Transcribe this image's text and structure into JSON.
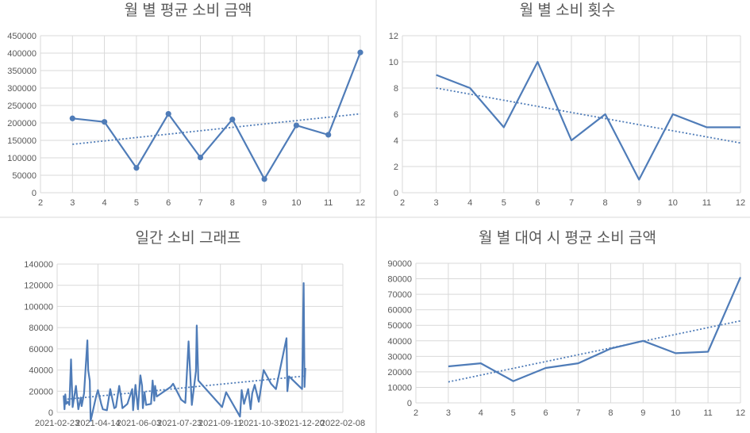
{
  "chart_data": [
    {
      "type": "line",
      "title": "월 별 평균 소비 금액",
      "x": [
        3,
        4,
        5,
        6,
        7,
        8,
        9,
        10,
        11,
        12
      ],
      "series": [
        {
          "values": [
            213000,
            203000,
            71000,
            226000,
            101000,
            210000,
            39000,
            193000,
            166000,
            402000
          ],
          "markers": true,
          "color": "#4f7cb8"
        }
      ],
      "trendline": {
        "type": "linear",
        "style": "dotted"
      },
      "xlim": [
        2,
        12
      ],
      "ylim": [
        0,
        450000
      ],
      "xticks": [
        "2",
        "3",
        "4",
        "5",
        "6",
        "7",
        "8",
        "9",
        "10",
        "11",
        "12"
      ],
      "yticks": [
        "0",
        "50000",
        "100000",
        "150000",
        "200000",
        "250000",
        "300000",
        "350000",
        "400000",
        "450000"
      ],
      "grid": true,
      "legend": "none"
    },
    {
      "type": "line",
      "title": "월 별 소비 횟수",
      "x": [
        3,
        4,
        5,
        6,
        7,
        8,
        9,
        10,
        11,
        12
      ],
      "series": [
        {
          "values": [
            9,
            8,
            5,
            10,
            4,
            6,
            1,
            6,
            5,
            5
          ],
          "markers": false,
          "color": "#4f7cb8"
        }
      ],
      "trendline": {
        "type": "linear",
        "style": "dotted"
      },
      "xlim": [
        2,
        12
      ],
      "ylim": [
        0,
        12
      ],
      "xticks": [
        "2",
        "3",
        "4",
        "5",
        "6",
        "7",
        "8",
        "9",
        "10",
        "11",
        "12"
      ],
      "yticks": [
        "0",
        "2",
        "4",
        "6",
        "8",
        "10",
        "12"
      ],
      "grid": true,
      "legend": "none"
    },
    {
      "type": "line",
      "title": "일간 소비 그래프",
      "x": [
        "2021-03-03",
        "2021-03-04",
        "2021-03-05",
        "2021-03-06",
        "2021-03-08",
        "2021-03-10",
        "2021-03-12",
        "2021-03-14",
        "2021-03-18",
        "2021-03-21",
        "2021-03-24",
        "2021-03-25",
        "2021-03-28",
        "2021-04-01",
        "2021-04-02",
        "2021-04-04",
        "2021-04-05",
        "2021-04-12",
        "2021-04-14",
        "2021-04-18",
        "2021-04-20",
        "2021-04-25",
        "2021-04-29",
        "2021-05-04",
        "2021-05-06",
        "2021-05-10",
        "2021-05-12",
        "2021-05-14",
        "2021-05-20",
        "2021-05-26",
        "2021-05-27",
        "2021-05-30",
        "2021-06-02",
        "2021-06-05",
        "2021-06-07",
        "2021-06-08",
        "2021-06-10",
        "2021-06-12",
        "2021-06-18",
        "2021-06-20",
        "2021-06-22",
        "2021-06-23",
        "2021-06-25",
        "2021-07-12",
        "2021-07-15",
        "2021-07-25",
        "2021-07-30",
        "2021-08-03",
        "2021-08-07",
        "2021-08-12",
        "2021-08-13",
        "2021-08-15",
        "2021-09-13",
        "2021-09-18",
        "2021-10-05",
        "2021-10-07",
        "2021-10-10",
        "2021-10-15",
        "2021-10-18",
        "2021-10-20",
        "2021-10-23",
        "2021-10-28",
        "2021-11-03",
        "2021-11-12",
        "2021-11-18",
        "2021-12-01",
        "2021-12-02",
        "2021-12-04",
        "2021-12-20",
        "2021-12-22",
        "2021-12-23",
        "2021-12-24"
      ],
      "series": [
        {
          "values": [
            16000,
            3000,
            17000,
            8000,
            10000,
            7000,
            50000,
            5000,
            25000,
            3000,
            14000,
            6000,
            18000,
            68000,
            40000,
            30000,
            -8000,
            16000,
            21000,
            8000,
            3000,
            2000,
            22000,
            4000,
            5000,
            25000,
            16000,
            4000,
            8000,
            22000,
            2000,
            26000,
            3000,
            35000,
            25000,
            4000,
            19000,
            7000,
            8000,
            30000,
            11000,
            25000,
            15000,
            24000,
            27000,
            12000,
            9000,
            67000,
            7000,
            39000,
            82000,
            30000,
            5000,
            19000,
            -4000,
            21000,
            8000,
            22000,
            3000,
            18000,
            26000,
            10000,
            40000,
            27000,
            22000,
            70000,
            20000,
            34000,
            22000,
            122000,
            24000,
            42000
          ],
          "markers": false,
          "color": "#4f7cb8"
        }
      ],
      "trendline": {
        "type": "linear",
        "style": "dotted"
      },
      "xlim": [
        "2021-02-23",
        "2022-02-08"
      ],
      "ylim": [
        0,
        140000
      ],
      "xticks": [
        "2021-02-23",
        "2021-04-14",
        "2021-06-03",
        "2021-07-23",
        "2021-09-11",
        "2021-10-31",
        "2021-12-20",
        "2022-02-08"
      ],
      "yticks": [
        "0",
        "20000",
        "40000",
        "60000",
        "80000",
        "100000",
        "120000",
        "140000"
      ],
      "grid": true,
      "legend": "none"
    },
    {
      "type": "line",
      "title": "월 별 대여 시 평균 소비 금액",
      "x": [
        3,
        4,
        5,
        6,
        7,
        8,
        9,
        10,
        11,
        12
      ],
      "series": [
        {
          "values": [
            23500,
            25500,
            14000,
            22500,
            25500,
            35000,
            40000,
            32000,
            33000,
            81000
          ],
          "markers": false,
          "color": "#4f7cb8"
        }
      ],
      "trendline": {
        "type": "linear",
        "style": "dotted"
      },
      "xlim": [
        2,
        12
      ],
      "ylim": [
        0,
        90000
      ],
      "xticks": [
        "2",
        "3",
        "4",
        "5",
        "6",
        "7",
        "8",
        "9",
        "10",
        "11",
        "12"
      ],
      "yticks": [
        "0",
        "10000",
        "20000",
        "30000",
        "40000",
        "50000",
        "60000",
        "70000",
        "80000",
        "90000"
      ],
      "grid": true,
      "legend": "none"
    }
  ]
}
